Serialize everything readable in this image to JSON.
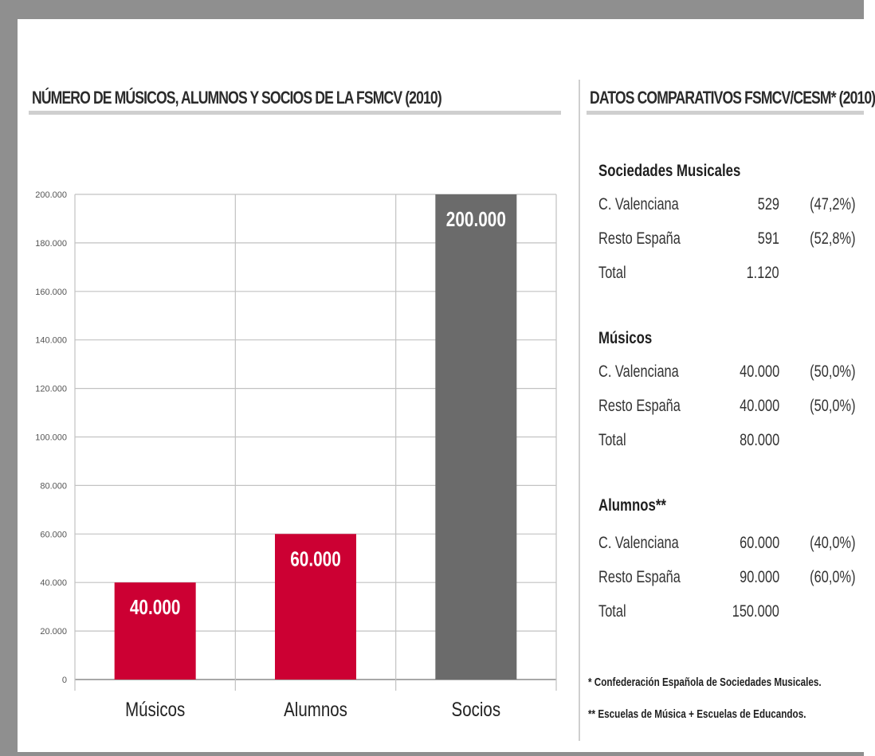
{
  "left_title": "NÚMERO DE MÚSICOS, ALUMNOS Y SOCIOS DE LA FSMCV (2010)",
  "right_title": "DATOS COMPARATIVOS FSMCV/CESM* (2010)",
  "chart_data": {
    "type": "bar",
    "title": "NÚMERO DE MÚSICOS, ALUMNOS Y SOCIOS DE LA FSMCV (2010)",
    "categories": [
      "Músicos",
      "Alumnos",
      "Socios"
    ],
    "values": [
      40000,
      60000,
      200000
    ],
    "value_labels": [
      "40.000",
      "60.000",
      "200.000"
    ],
    "bar_colors": [
      "#cc0033",
      "#cc0033",
      "#6b6b6b"
    ],
    "ylim": [
      0,
      200000
    ],
    "yticks": [
      0,
      20000,
      40000,
      60000,
      80000,
      100000,
      120000,
      140000,
      160000,
      180000,
      200000
    ],
    "ytick_labels": [
      "0",
      "20.000",
      "40.000",
      "60.000",
      "80.000",
      "100.000",
      "120.000",
      "140.000",
      "160.000",
      "180.000",
      "200.000"
    ],
    "grid": true,
    "xlabel": "",
    "ylabel": ""
  },
  "comparison": {
    "groups": [
      {
        "heading": "Sociedades Musicales",
        "rows": [
          {
            "label": "C. Valenciana",
            "value": "529",
            "pct": "(47,2%)"
          },
          {
            "label": "Resto España",
            "value": "591",
            "pct": "(52,8%)"
          },
          {
            "label": "Total",
            "value": "1.120",
            "pct": ""
          }
        ]
      },
      {
        "heading": "Músicos",
        "rows": [
          {
            "label": "C. Valenciana",
            "value": "40.000",
            "pct": "(50,0%)"
          },
          {
            "label": "Resto España",
            "value": "40.000",
            "pct": "(50,0%)"
          },
          {
            "label": "Total",
            "value": "80.000",
            "pct": ""
          }
        ]
      },
      {
        "heading": "Alumnos**",
        "rows": [
          {
            "label": "C. Valenciana",
            "value": "60.000",
            "pct": "(40,0%)"
          },
          {
            "label": "Resto España",
            "value": "90.000",
            "pct": "(60,0%)"
          },
          {
            "label": "Total",
            "value": "150.000",
            "pct": ""
          }
        ]
      }
    ],
    "footnotes": [
      "* Confederación Española de Sociedades Musicales.",
      "** Escuelas de Música + Escuelas de Educandos."
    ]
  }
}
